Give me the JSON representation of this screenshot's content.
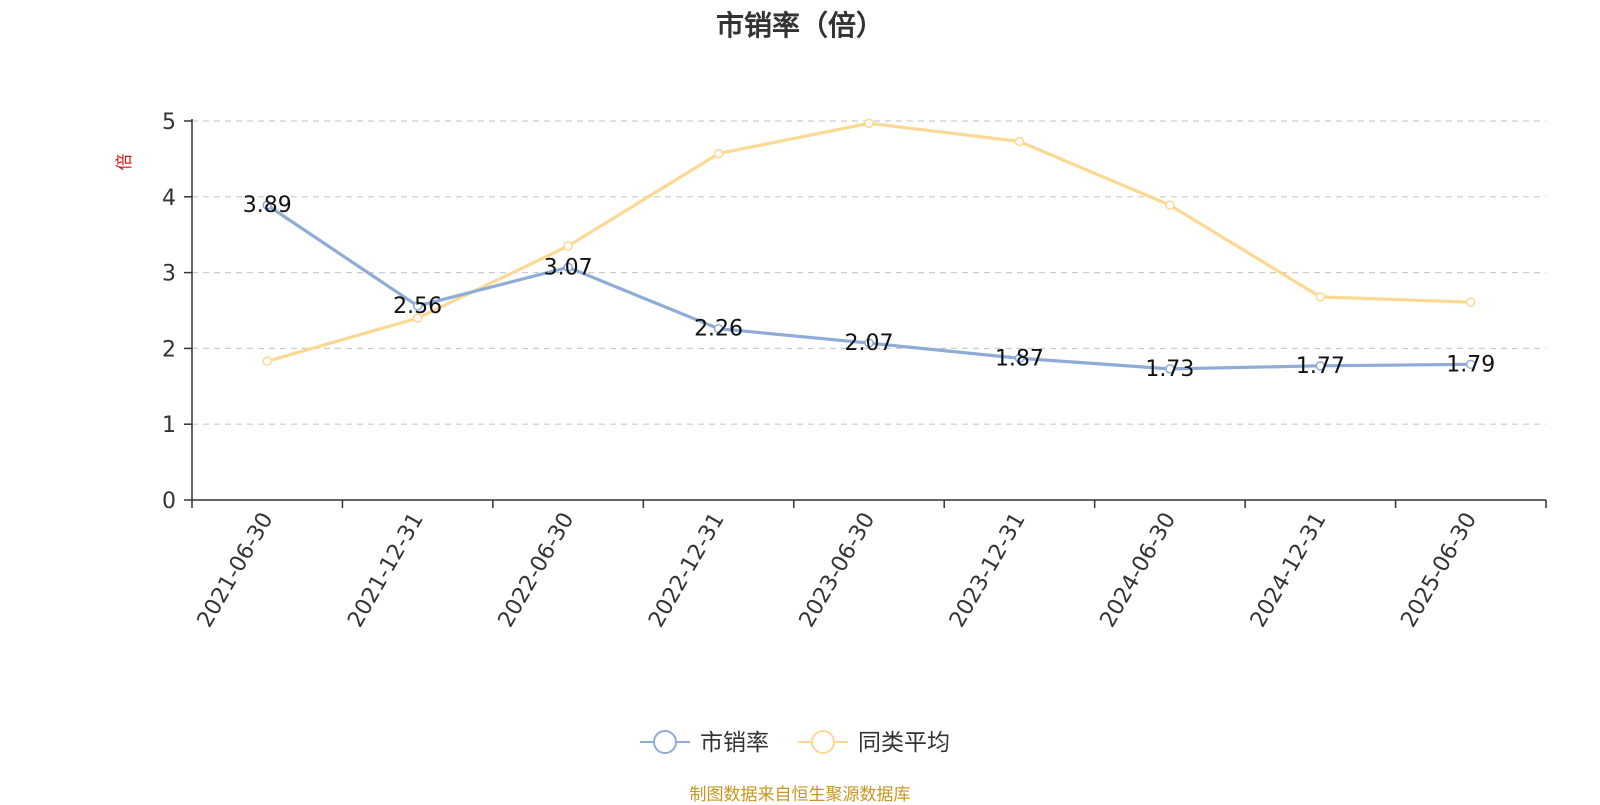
{
  "chart_data": {
    "type": "line",
    "title": "市销率（倍）",
    "ylabel": "倍",
    "categories": [
      "2021-06-30",
      "2021-12-31",
      "2022-06-30",
      "2022-12-31",
      "2023-06-30",
      "2023-12-31",
      "2024-06-30",
      "2024-12-31",
      "2025-06-30"
    ],
    "ylim": [
      0,
      5
    ],
    "yticks": [
      "0",
      "1",
      "2",
      "3",
      "4",
      "5"
    ],
    "grid": "horizontal dashed",
    "legend_position": "bottom-center",
    "series": [
      {
        "name": "市销率",
        "color": "#8eacd6",
        "values": [
          3.89,
          2.56,
          3.07,
          2.26,
          2.07,
          1.87,
          1.73,
          1.77,
          1.79
        ],
        "labels": [
          "3.89",
          "2.56",
          "3.07",
          "2.26",
          "2.07",
          "1.87",
          "1.73",
          "1.77",
          "1.79"
        ]
      },
      {
        "name": "同类平均",
        "color": "#fcd893",
        "values": [
          1.83,
          2.4,
          3.35,
          4.57,
          4.97,
          4.73,
          3.89,
          2.68,
          2.61
        ]
      }
    ]
  },
  "footer": {
    "source": "制图数据来自恒生聚源数据库"
  },
  "colors": {
    "axis": "#333333",
    "grid": "#cccccc",
    "ylabel": "#e01010",
    "source": "#c8961e"
  }
}
